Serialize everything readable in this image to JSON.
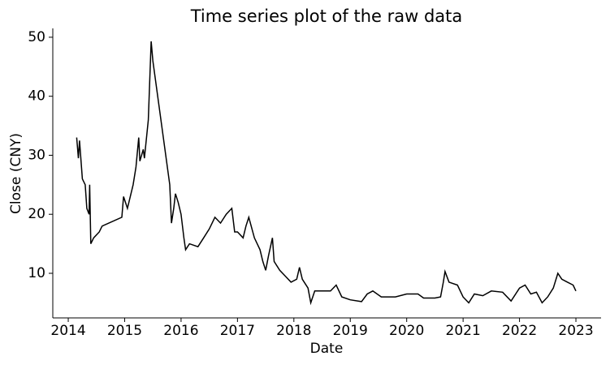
{
  "chart_data": {
    "type": "line",
    "title": "Time series plot of the raw data",
    "x_label": "Date",
    "y_label": "Close (CNY)",
    "x": [
      2014.15,
      2014.18,
      2014.2,
      2014.25,
      2014.3,
      2014.33,
      2014.37,
      2014.38,
      2014.4,
      2014.45,
      2014.55,
      2014.6,
      2014.95,
      2014.98,
      2015.05,
      2015.15,
      2015.2,
      2015.25,
      2015.27,
      2015.33,
      2015.35,
      2015.42,
      2015.45,
      2015.47,
      2015.5,
      2015.8,
      2015.83,
      2015.87,
      2015.9,
      2015.95,
      2016.0,
      2016.05,
      2016.08,
      2016.15,
      2016.3,
      2016.4,
      2016.5,
      2016.6,
      2016.7,
      2016.8,
      2016.9,
      2016.95,
      2017.0,
      2017.1,
      2017.15,
      2017.2,
      2017.3,
      2017.4,
      2017.45,
      2017.5,
      2017.55,
      2017.62,
      2017.65,
      2017.75,
      2017.85,
      2017.95,
      2018.05,
      2018.1,
      2018.15,
      2018.25,
      2018.3,
      2018.37,
      2018.65,
      2018.75,
      2018.85,
      2019.0,
      2019.2,
      2019.3,
      2019.4,
      2019.55,
      2019.8,
      2020.0,
      2020.2,
      2020.3,
      2020.5,
      2020.6,
      2020.65,
      2020.68,
      2020.75,
      2020.9,
      2021.0,
      2021.1,
      2021.2,
      2021.35,
      2021.5,
      2021.7,
      2021.85,
      2022.0,
      2022.1,
      2022.2,
      2022.3,
      2022.4,
      2022.5,
      2022.6,
      2022.68,
      2022.75,
      2022.85,
      2022.95,
      2023.0
    ],
    "series": [
      {
        "name": "Close",
        "color": "#000000",
        "values": [
          33,
          29.5,
          32.5,
          26,
          25,
          21,
          20,
          25,
          15,
          16,
          17,
          18,
          19.5,
          23,
          21,
          25,
          28,
          33,
          29,
          31,
          29.5,
          36,
          44,
          49.3,
          46,
          25,
          18.5,
          21,
          23.5,
          22,
          20,
          16,
          14,
          15,
          14.5,
          16,
          17.5,
          19.5,
          18.5,
          20,
          21,
          17,
          17,
          16,
          18,
          19.5,
          16,
          14,
          12,
          10.5,
          13,
          16,
          12,
          10.5,
          9.5,
          8.5,
          9,
          11,
          9,
          7.5,
          5,
          7,
          7,
          8,
          6,
          5.5,
          5.2,
          6.5,
          7,
          6,
          6,
          6.5,
          6.5,
          5.8,
          5.8,
          6,
          8.5,
          10.3,
          8.5,
          8,
          6,
          5,
          6.5,
          6.2,
          7,
          6.8,
          5.3,
          7.5,
          8,
          6.5,
          6.8,
          5,
          6,
          7.5,
          10,
          9,
          8.5,
          8,
          7
        ]
      }
    ],
    "xlim": [
      2013.726,
      2023.446
    ],
    "xticks": [
      2014,
      2015,
      2016,
      2017,
      2018,
      2019,
      2020,
      2021,
      2022,
      2023
    ],
    "ylim": [
      2.44,
      51.5
    ],
    "yticks": [
      10,
      20,
      30,
      40,
      50
    ]
  }
}
